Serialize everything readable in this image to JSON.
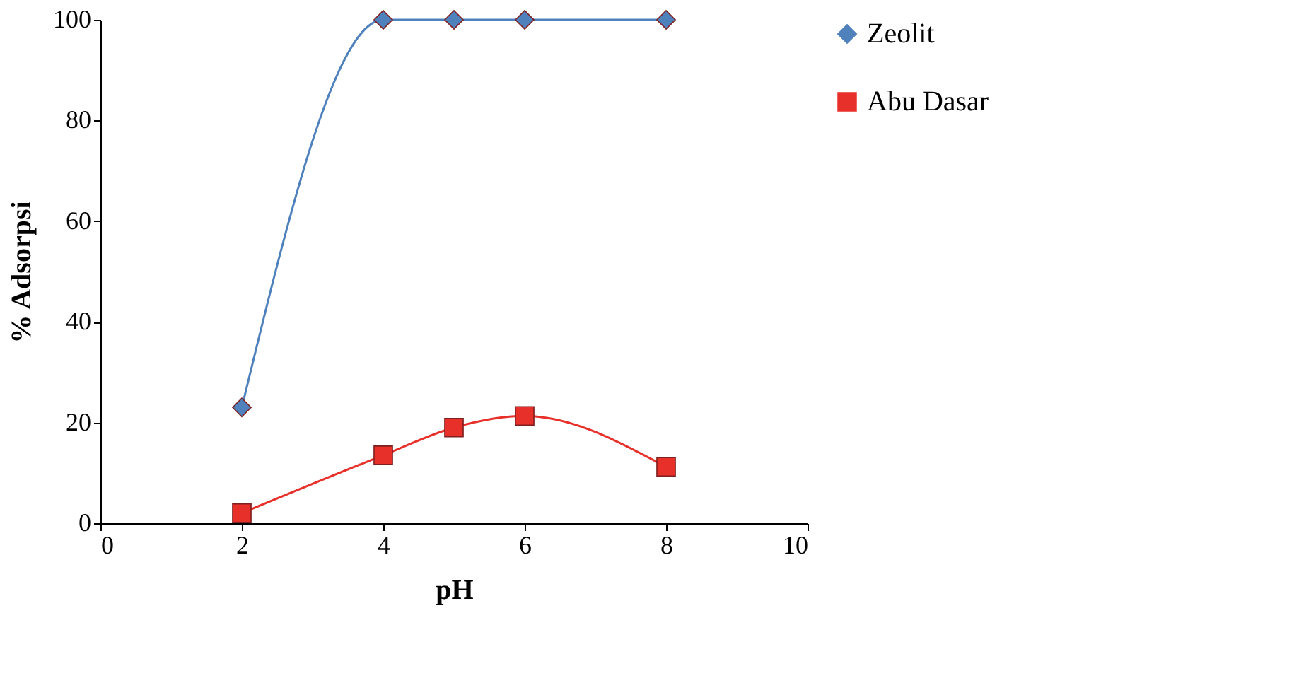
{
  "chart_data": {
    "type": "line",
    "xlabel": "pH",
    "ylabel": "% Adsorpsi",
    "x": [
      2,
      4,
      5,
      6,
      8
    ],
    "series": [
      {
        "name": "Zeolit",
        "color": "#4f81bd",
        "marker": "diamond",
        "values": [
          23,
          100,
          100,
          100,
          100
        ]
      },
      {
        "name": "Abu Dasar",
        "color": "#e8302a",
        "marker": "square",
        "values": [
          2,
          13.5,
          19,
          21.3,
          11.2
        ]
      }
    ],
    "xlim": [
      0,
      10
    ],
    "xticks": [
      0,
      2,
      4,
      6,
      8,
      10
    ],
    "ylim": [
      0,
      100
    ],
    "yticks": [
      0,
      20,
      40,
      60,
      80,
      100
    ],
    "grid": false,
    "legend": "right",
    "line_style": "solid"
  }
}
